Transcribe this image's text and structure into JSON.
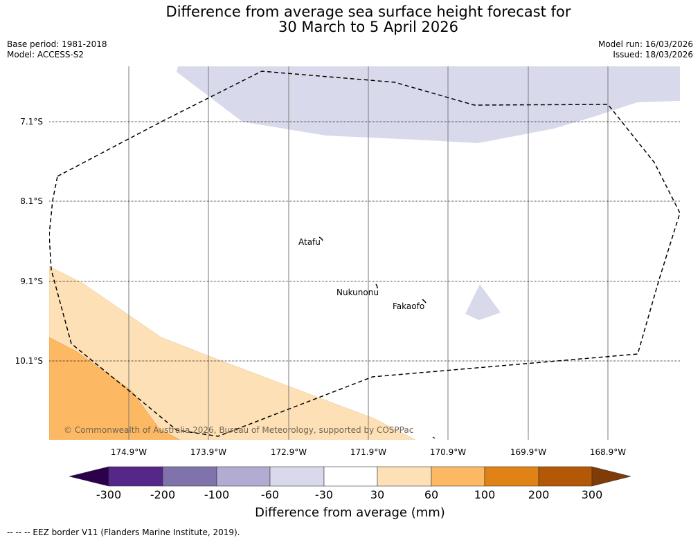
{
  "title": {
    "line1": "Difference from average sea surface height forecast for",
    "line2": "30 March to 5 April 2026"
  },
  "meta": {
    "base_period": "Base period: 1981-2018",
    "model": "Model: ACCESS-S2",
    "model_run": "Model run: 16/03/2026",
    "issued": "Issued: 18/03/2026"
  },
  "map": {
    "latitude_labels": [
      "7.1°S",
      "8.1°S",
      "9.1°S",
      "10.1°S"
    ],
    "longitude_labels": [
      "174.9°W",
      "173.9°W",
      "172.9°W",
      "171.9°W",
      "170.9°W",
      "169.9°W",
      "168.9°W"
    ],
    "places": [
      "Atafu",
      "Nukunonu",
      "Fakaofo"
    ],
    "credit": "© Commonwealth of Australia 2026, Bureau of Meteorology, supported by COSPPac"
  },
  "colorbar": {
    "ticks": [
      "-300",
      "-200",
      "-100",
      "-60",
      "-30",
      "30",
      "60",
      "100",
      "200",
      "300"
    ],
    "label": "Difference from average (mm)",
    "colors": [
      "#2d004b",
      "#542788",
      "#8073ac",
      "#b2abd2",
      "#d8daeb",
      "#ffffff",
      "#fee0b6",
      "#fdb863",
      "#e08214",
      "#b35806",
      "#7f3b08"
    ]
  },
  "footnote": "--  --  -- EEZ border V11 (Flanders Marine Institute, 2019)."
}
